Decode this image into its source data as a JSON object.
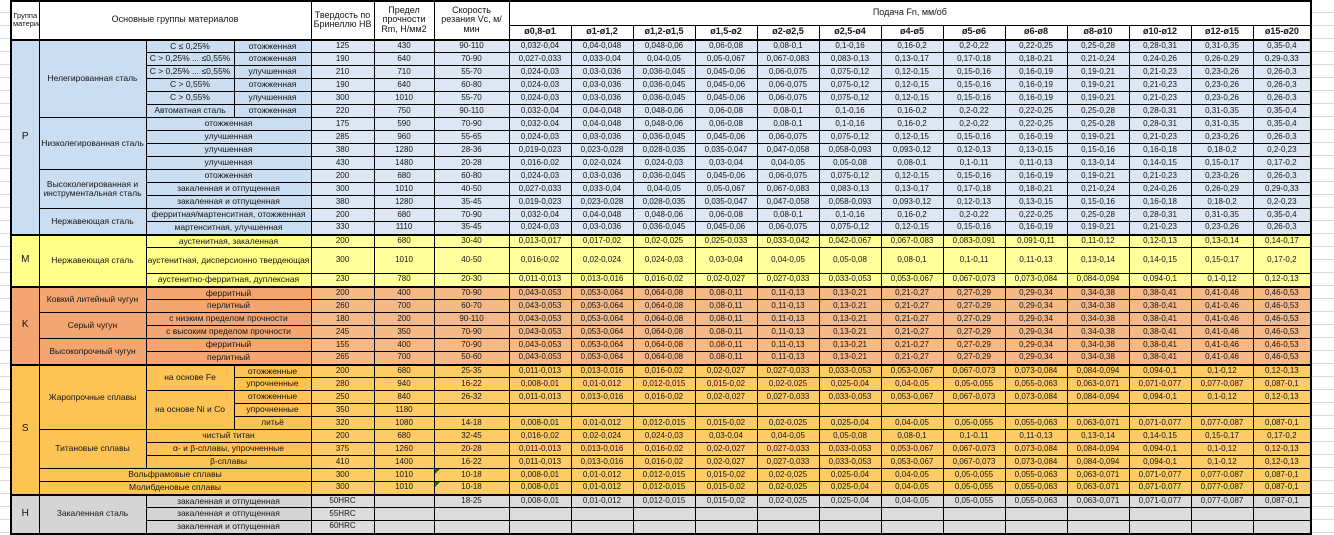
{
  "header": {
    "group_col": "Группа материалов",
    "materials_col": "Основные группы материалов",
    "hb_col": "Твердость по Бринеллю HB",
    "rm_col": "Предел прочности Rm, Н/мм2",
    "vc_col": "Скорость резания Vc, м/мин",
    "feed_col": "Подача Fn, мм/об",
    "diameters": [
      "ø0,8-ø1",
      "ø1-ø1,2",
      "ø1,2-ø1,5",
      "ø1,5-ø2",
      "ø2-ø2,5",
      "ø2,5-ø4",
      "ø4-ø5",
      "ø5-ø6",
      "ø6-ø8",
      "ø8-ø10",
      "ø10-ø12",
      "ø12-ø15",
      "ø15-ø20"
    ]
  },
  "feed_sets": {
    "A": [
      "0,032-0,04",
      "0,04-0,048",
      "0,048-0,06",
      "0,06-0,08",
      "0,08-0,1",
      "0,1-0,16",
      "0,16-0,2",
      "0,2-0,22",
      "0,22-0,25",
      "0,25-0,28",
      "0,28-0,31",
      "0,31-0,35",
      "0,35-0,4"
    ],
    "B": [
      "0,027-0,033",
      "0,033-0,04",
      "0,04-0,05",
      "0,05-0,067",
      "0,067-0,083",
      "0,083-0,13",
      "0,13-0,17",
      "0,17-0,18",
      "0,18-0,21",
      "0,21-0,24",
      "0,24-0,26",
      "0,26-0,29",
      "0,29-0,33"
    ],
    "C": [
      "0,024-0,03",
      "0,03-0,036",
      "0,036-0,045",
      "0,045-0,06",
      "0,06-0,075",
      "0,075-0,12",
      "0,12-0,15",
      "0,15-0,16",
      "0,16-0,19",
      "0,19-0,21",
      "0,21-0,23",
      "0,23-0,26",
      "0,26-0,3"
    ],
    "D": [
      "0,019-0,023",
      "0,023-0,028",
      "0,028-0,035",
      "0,035-0,047",
      "0,047-0,058",
      "0,058-0,093",
      "0,093-0,12",
      "0,12-0,13",
      "0,13-0,15",
      "0,15-0,16",
      "0,16-0,18",
      "0,18-0,2",
      "0,2-0,23"
    ],
    "E": [
      "0,016-0,02",
      "0,02-0,024",
      "0,024-0,03",
      "0,03-0,04",
      "0,04-0,05",
      "0,05-0,08",
      "0,08-0,1",
      "0,1-0,11",
      "0,11-0,13",
      "0,13-0,14",
      "0,14-0,15",
      "0,15-0,17",
      "0,17-0,2"
    ],
    "F": [
      "0,013-0,017",
      "0,017-0,02",
      "0,02-0,025",
      "0,025-0,033",
      "0,033-0,042",
      "0,042-0,067",
      "0,067-0,083",
      "0,083-0,091",
      "0,091-0,11",
      "0,11-0,12",
      "0,12-0,13",
      "0,13-0,14",
      "0,14-0,17"
    ],
    "G": [
      "0,011-0,013",
      "0,013-0,016",
      "0,016-0,02",
      "0,02-0,027",
      "0,027-0,033",
      "0,033-0,053",
      "0,053-0,067",
      "0,067-0,073",
      "0,073-0,084",
      "0,084-0,094",
      "0,094-0,1",
      "0,1-0,12",
      "0,12-0,13"
    ],
    "H": [
      "0,043-0,053",
      "0,053-0,064",
      "0,064-0,08",
      "0,08-0,11",
      "0,11-0,13",
      "0,13-0,21",
      "0,21-0,27",
      "0,27-0,29",
      "0,29-0,34",
      "0,34-0,38",
      "0,38-0,41",
      "0,41-0,46",
      "0,46-0,53"
    ],
    "I": [
      "0,008-0,01",
      "0,01-0,012",
      "0,012-0,015",
      "0,015-0,02",
      "0,02-0,025",
      "0,025-0,04",
      "0,04-0,05",
      "0,05-0,055",
      "0,055-0,063",
      "0,063-0,071",
      "0,071-0,077",
      "0,077-0,087",
      "0,087-0,1"
    ],
    "EMPTY": [
      "",
      "",
      "",
      "",
      "",
      "",
      "",
      "",
      "",
      "",
      "",
      "",
      ""
    ]
  },
  "rows": [
    {
      "g": "P",
      "gspan": 15,
      "m": "Нелегированная сталь",
      "mspan": 6,
      "s1": "С ≤ 0,25%",
      "s2": "отожженная",
      "hb": "125",
      "rm": "430",
      "vc": "90-110",
      "f": "A"
    },
    {
      "s1": "С > 0,25% ... ≤0,55%",
      "s2": "отожженная",
      "hb": "190",
      "rm": "640",
      "vc": "70-90",
      "f": "B"
    },
    {
      "s1": "С > 0,25% ... ≤0,55%",
      "s2": "улучшенная",
      "hb": "210",
      "rm": "710",
      "vc": "55-70",
      "f": "C"
    },
    {
      "s1": "С > 0,55%",
      "s2": "отожженная",
      "hb": "190",
      "rm": "640",
      "vc": "60-80",
      "f": "C"
    },
    {
      "s1": "С > 0,55%",
      "s2": "улучшенная",
      "hb": "300",
      "rm": "1010",
      "vc": "55-70",
      "f": "C"
    },
    {
      "s1": "Автоматная сталь",
      "s2": "отожженная",
      "hb": "220",
      "rm": "750",
      "vc": "90-110",
      "f": "A"
    },
    {
      "m": "Низколегированная сталь",
      "mspan": 4,
      "s12": "отожженная",
      "hb": "175",
      "rm": "590",
      "vc": "70-90",
      "f": "A"
    },
    {
      "s12": "улучшенная",
      "hb": "285",
      "rm": "960",
      "vc": "55-65",
      "f": "C"
    },
    {
      "s12": "улучшенная",
      "hb": "380",
      "rm": "1280",
      "vc": "28-36",
      "f": "D"
    },
    {
      "s12": "улучшенная",
      "hb": "430",
      "rm": "1480",
      "vc": "20-28",
      "f": "E"
    },
    {
      "m": "Высоколегированная и инструментальная сталь",
      "mspan": 3,
      "s12": "отожженная",
      "hb": "200",
      "rm": "680",
      "vc": "60-80",
      "f": "C"
    },
    {
      "s12": "закаленная и отпущенная",
      "hb": "300",
      "rm": "1010",
      "vc": "40-50",
      "f": "B"
    },
    {
      "s12": "закаленная и отпущенная",
      "hb": "380",
      "rm": "1280",
      "vc": "35-45",
      "f": "D"
    },
    {
      "m": "Нержавеющая сталь",
      "mspan": 2,
      "s12": "ферритная/мартенситная, отожженная",
      "hb": "200",
      "rm": "680",
      "vc": "70-90",
      "f": "A"
    },
    {
      "s12": "мартенситная, улучшенная",
      "hb": "330",
      "rm": "1110",
      "vc": "35-45",
      "f": "C"
    },
    {
      "g": "M",
      "gspan": 3,
      "m": "Нержавеющая сталь",
      "mspan": 3,
      "s12": "аустенитная, закаленная",
      "hb": "200",
      "rm": "680",
      "vc": "30-40",
      "f": "F"
    },
    {
      "s12": "аустенитная, дисперсионно твердеющая",
      "hb": "300",
      "rm": "1010",
      "vc": "40-50",
      "f": "E",
      "tall": true
    },
    {
      "s12": "аустенитно-ферритная, дуплексная",
      "hb": "230",
      "rm": "780",
      "vc": "20-30",
      "f": "G"
    },
    {
      "g": "K",
      "gspan": 6,
      "m": "Ковкий литейный чугун",
      "mspan": 2,
      "s12": "ферритный",
      "hb": "200",
      "rm": "400",
      "vc": "70-90",
      "f": "H"
    },
    {
      "s12": "перлитный",
      "hb": "260",
      "rm": "700",
      "vc": "60-70",
      "f": "H"
    },
    {
      "m": "Серый чугун",
      "mspan": 2,
      "s12": "с низким пределом прочности",
      "hb": "180",
      "rm": "200",
      "vc": "90-110",
      "f": "H"
    },
    {
      "s12": "с высоким пределом прочности",
      "hb": "245",
      "rm": "350",
      "vc": "70-90",
      "f": "H"
    },
    {
      "m": "Высокопрочный чугун",
      "mspan": 2,
      "s12": "ферритный",
      "hb": "155",
      "rm": "400",
      "vc": "70-90",
      "f": "H"
    },
    {
      "s12": "перлитный",
      "hb": "265",
      "rm": "700",
      "vc": "50-60",
      "f": "H"
    },
    {
      "g": "S",
      "gspan": 10,
      "m": "Жаропрочные сплавы",
      "mspan": 5,
      "s1": "на основе Fe",
      "s1span": 2,
      "s2": "отожженные",
      "hb": "200",
      "rm": "680",
      "vc": "25-35",
      "f": "G"
    },
    {
      "s2": "упрочненные",
      "hb": "280",
      "rm": "940",
      "vc": "16-22",
      "f": "I"
    },
    {
      "s1": "на основе Ni и Co",
      "s1span": 3,
      "s2": "отожженные",
      "hb": "250",
      "rm": "840",
      "vc": "26-32",
      "f": "G"
    },
    {
      "s2": "упрочненные",
      "hb": "350",
      "rm": "1180",
      "vc": "",
      "f": "EMPTY"
    },
    {
      "s2": "литьё",
      "hb": "320",
      "rm": "1080",
      "vc": "14-18",
      "f": "I"
    },
    {
      "m": "Титановые сплавы",
      "mspan": 3,
      "s12": "чистый титан",
      "hb": "200",
      "rm": "680",
      "vc": "32-45",
      "f": "E"
    },
    {
      "s12": "α- и β-сплавы, упрочненные",
      "hb": "375",
      "rm": "1260",
      "vc": "20-28",
      "f": "G"
    },
    {
      "s12": "β-сплавы",
      "hb": "410",
      "rm": "1400",
      "vc": "16-22",
      "f": "G"
    },
    {
      "m3": "Вольфрамовые сплавы",
      "hb": "300",
      "rm": "1010",
      "vc": "10-18",
      "f": "I",
      "flag": true
    },
    {
      "m3": "Молибденовые сплавы",
      "hb": "300",
      "rm": "1010",
      "vc": "10-18",
      "f": "I",
      "flag": true
    },
    {
      "g": "H",
      "gspan": 3,
      "m": "Закаленная сталь",
      "mspan": 3,
      "s12": "закаленная и отпущенная",
      "hb": "50HRC",
      "rm": "",
      "vc": "18-25",
      "f": "I"
    },
    {
      "s12": "закаленная и отпущенная",
      "hb": "55HRC",
      "rm": "",
      "vc": "",
      "f": "EMPTY"
    },
    {
      "s12": "закаленная и отпущенная",
      "hb": "60HRC",
      "rm": "",
      "vc": "",
      "f": "EMPTY"
    }
  ]
}
